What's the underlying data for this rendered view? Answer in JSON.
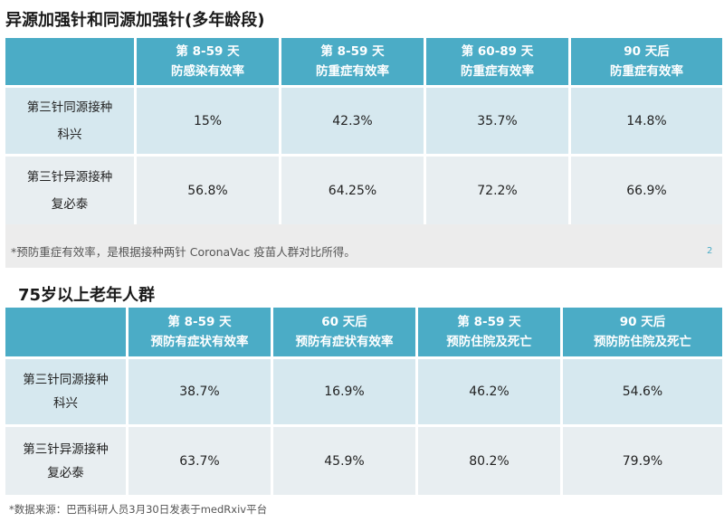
{
  "table1": {
    "title": "异源加强针和同源加强针(多年龄段)",
    "headers": [
      {
        "line1": "第 8-59 天",
        "line2": "防感染有效率"
      },
      {
        "line1": "第 8-59 天",
        "line2": "防重症有效率"
      },
      {
        "line1": "第 60-89 天",
        "line2": "防重症有效率"
      },
      {
        "line1": "90 天后",
        "line2": "防重症有效率"
      }
    ],
    "rows": [
      {
        "label1": "第三针同源接种",
        "label2": "科兴",
        "values": [
          "15%",
          "42.3%",
          "35.7%",
          "14.8%"
        ]
      },
      {
        "label1": "第三针异源接种",
        "label2": "复必泰",
        "values": [
          "56.8%",
          "64.25%",
          "72.2%",
          "66.9%"
        ]
      }
    ],
    "footnote": "*预防重症有效率，是根据接种两针 CoronaVac 疫苗人群对比所得。",
    "footnote_mark": "2"
  },
  "table2": {
    "title": "75岁以上老年人群",
    "headers": [
      {
        "line1": "第 8-59 天",
        "line2": "预防有症状有效率"
      },
      {
        "line1": "60 天后",
        "line2": "预防有症状有效率"
      },
      {
        "line1": "第 8-59 天",
        "line2": "预防住院及死亡"
      },
      {
        "line1": "90 天后",
        "line2": "预防防住院及死亡"
      }
    ],
    "rows": [
      {
        "label1": "第三针同源接种",
        "label2": "科兴",
        "values": [
          "38.7%",
          "16.9%",
          "46.2%",
          "54.6%"
        ]
      },
      {
        "label1": "第三针异源接种",
        "label2": "复必泰",
        "values": [
          "63.7%",
          "45.9%",
          "80.2%",
          "79.9%"
        ]
      }
    ]
  },
  "source_note": "*数据来源：巴西科研人员3月30日发表于medRxiv平台",
  "colors": {
    "header": "#4bacc6",
    "row_light": "#d6e8ef",
    "row_gray": "#e8eef1"
  }
}
